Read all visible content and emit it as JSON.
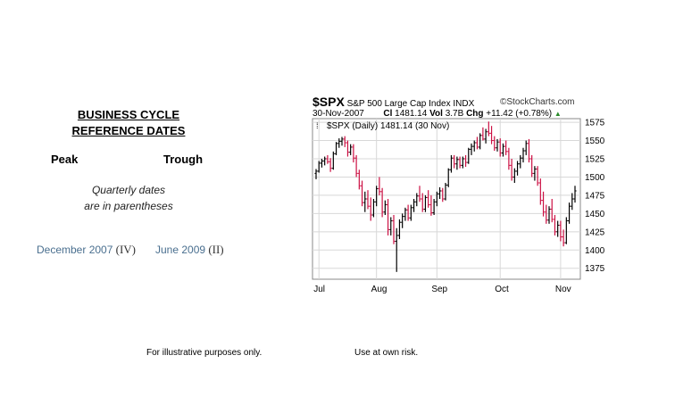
{
  "left_panel": {
    "title_line1": "BUSINESS CYCLE",
    "title_line2": "REFERENCE DATES",
    "peak_label": "Peak",
    "trough_label": "Trough",
    "note_line1": "Quarterly dates",
    "note_line2": "are in parentheses",
    "peak_date": "December 2007",
    "peak_quarter": "(IV)",
    "trough_date": "June 2009",
    "trough_quarter": "(II)"
  },
  "chart_header": {
    "symbol": "$SPX",
    "name": "S&P 500 Large Cap Index",
    "exchange": "INDX",
    "source": "©StockCharts.com",
    "date": "30-Nov-2007",
    "close_label": "Cl",
    "close": "1481.14",
    "vol_label": "Vol",
    "vol": "3.7B",
    "chg_label": "Chg",
    "chg": "+11.42 (+0.78%)",
    "legend": "$SPX (Daily) 1481.14 (30 Nov)"
  },
  "footer": {
    "left": "For illustrative purposes only.",
    "right": "Use at own risk."
  },
  "colors": {
    "up_bar": "#000000",
    "down_bar": "#cc1144",
    "grid": "#d8d8d8",
    "frame": "#888888",
    "link": "#4a6f8f"
  },
  "chart_data": {
    "type": "ohlc",
    "title": "$SPX (Daily) 1481.14 (30 Nov)",
    "ylim": [
      1360,
      1580
    ],
    "yticks": [
      "1575",
      "1550",
      "1525",
      "1500",
      "1475",
      "1450",
      "1425",
      "1400",
      "1375"
    ],
    "ytick_values": [
      1575,
      1550,
      1525,
      1500,
      1475,
      1450,
      1425,
      1400,
      1375
    ],
    "xtick_labels": [
      "Jul",
      "Aug",
      "Sep",
      "Oct",
      "Nov"
    ],
    "xtick_index": [
      1,
      21,
      42,
      64,
      85
    ],
    "grid": true,
    "bars": [
      {
        "o": 1505,
        "h": 1511,
        "l": 1497,
        "c": 1508
      },
      {
        "o": 1508,
        "h": 1522,
        "l": 1506,
        "c": 1519
      },
      {
        "o": 1519,
        "h": 1525,
        "l": 1513,
        "c": 1522
      },
      {
        "o": 1522,
        "h": 1528,
        "l": 1516,
        "c": 1525
      },
      {
        "o": 1525,
        "h": 1530,
        "l": 1518,
        "c": 1521
      },
      {
        "o": 1521,
        "h": 1526,
        "l": 1507,
        "c": 1512
      },
      {
        "o": 1512,
        "h": 1535,
        "l": 1510,
        "c": 1532
      },
      {
        "o": 1532,
        "h": 1548,
        "l": 1530,
        "c": 1546
      },
      {
        "o": 1546,
        "h": 1553,
        "l": 1540,
        "c": 1549
      },
      {
        "o": 1549,
        "h": 1555,
        "l": 1543,
        "c": 1552
      },
      {
        "o": 1552,
        "h": 1556,
        "l": 1541,
        "c": 1547
      },
      {
        "o": 1547,
        "h": 1550,
        "l": 1528,
        "c": 1534
      },
      {
        "o": 1534,
        "h": 1545,
        "l": 1530,
        "c": 1541
      },
      {
        "o": 1541,
        "h": 1545,
        "l": 1520,
        "c": 1526
      },
      {
        "o": 1526,
        "h": 1530,
        "l": 1500,
        "c": 1505
      },
      {
        "o": 1505,
        "h": 1510,
        "l": 1483,
        "c": 1488
      },
      {
        "o": 1488,
        "h": 1495,
        "l": 1460,
        "c": 1465
      },
      {
        "o": 1465,
        "h": 1480,
        "l": 1452,
        "c": 1470
      },
      {
        "o": 1470,
        "h": 1482,
        "l": 1456,
        "c": 1460
      },
      {
        "o": 1460,
        "h": 1472,
        "l": 1440,
        "c": 1448
      },
      {
        "o": 1448,
        "h": 1470,
        "l": 1445,
        "c": 1466
      },
      {
        "o": 1466,
        "h": 1488,
        "l": 1460,
        "c": 1484
      },
      {
        "o": 1484,
        "h": 1500,
        "l": 1475,
        "c": 1480
      },
      {
        "o": 1480,
        "h": 1485,
        "l": 1445,
        "c": 1452
      },
      {
        "o": 1452,
        "h": 1468,
        "l": 1448,
        "c": 1462
      },
      {
        "o": 1462,
        "h": 1470,
        "l": 1420,
        "c": 1428
      },
      {
        "o": 1428,
        "h": 1445,
        "l": 1420,
        "c": 1440
      },
      {
        "o": 1440,
        "h": 1448,
        "l": 1408,
        "c": 1412
      },
      {
        "o": 1412,
        "h": 1430,
        "l": 1370,
        "c": 1420
      },
      {
        "o": 1420,
        "h": 1442,
        "l": 1415,
        "c": 1438
      },
      {
        "o": 1438,
        "h": 1450,
        "l": 1430,
        "c": 1446
      },
      {
        "o": 1446,
        "h": 1458,
        "l": 1440,
        "c": 1455
      },
      {
        "o": 1455,
        "h": 1462,
        "l": 1440,
        "c": 1444
      },
      {
        "o": 1444,
        "h": 1462,
        "l": 1440,
        "c": 1458
      },
      {
        "o": 1458,
        "h": 1470,
        "l": 1452,
        "c": 1466
      },
      {
        "o": 1466,
        "h": 1478,
        "l": 1460,
        "c": 1474
      },
      {
        "o": 1474,
        "h": 1488,
        "l": 1466,
        "c": 1470
      },
      {
        "o": 1470,
        "h": 1478,
        "l": 1452,
        "c": 1456
      },
      {
        "o": 1456,
        "h": 1475,
        "l": 1452,
        "c": 1472
      },
      {
        "o": 1472,
        "h": 1482,
        "l": 1458,
        "c": 1462
      },
      {
        "o": 1462,
        "h": 1475,
        "l": 1447,
        "c": 1451
      },
      {
        "o": 1451,
        "h": 1470,
        "l": 1448,
        "c": 1466
      },
      {
        "o": 1466,
        "h": 1480,
        "l": 1460,
        "c": 1477
      },
      {
        "o": 1477,
        "h": 1486,
        "l": 1470,
        "c": 1481
      },
      {
        "o": 1481,
        "h": 1485,
        "l": 1466,
        "c": 1470
      },
      {
        "o": 1470,
        "h": 1492,
        "l": 1468,
        "c": 1489
      },
      {
        "o": 1489,
        "h": 1512,
        "l": 1486,
        "c": 1510
      },
      {
        "o": 1510,
        "h": 1530,
        "l": 1506,
        "c": 1526
      },
      {
        "o": 1526,
        "h": 1530,
        "l": 1512,
        "c": 1518
      },
      {
        "o": 1518,
        "h": 1528,
        "l": 1510,
        "c": 1524
      },
      {
        "o": 1524,
        "h": 1528,
        "l": 1512,
        "c": 1516
      },
      {
        "o": 1516,
        "h": 1528,
        "l": 1512,
        "c": 1525
      },
      {
        "o": 1525,
        "h": 1530,
        "l": 1514,
        "c": 1520
      },
      {
        "o": 1520,
        "h": 1540,
        "l": 1518,
        "c": 1538
      },
      {
        "o": 1538,
        "h": 1546,
        "l": 1530,
        "c": 1542
      },
      {
        "o": 1542,
        "h": 1550,
        "l": 1535,
        "c": 1547
      },
      {
        "o": 1547,
        "h": 1555,
        "l": 1538,
        "c": 1541
      },
      {
        "o": 1541,
        "h": 1560,
        "l": 1538,
        "c": 1557
      },
      {
        "o": 1557,
        "h": 1568,
        "l": 1550,
        "c": 1552
      },
      {
        "o": 1552,
        "h": 1566,
        "l": 1546,
        "c": 1562
      },
      {
        "o": 1562,
        "h": 1576,
        "l": 1556,
        "c": 1560
      },
      {
        "o": 1560,
        "h": 1570,
        "l": 1545,
        "c": 1550
      },
      {
        "o": 1550,
        "h": 1556,
        "l": 1536,
        "c": 1540
      },
      {
        "o": 1540,
        "h": 1552,
        "l": 1535,
        "c": 1548
      },
      {
        "o": 1548,
        "h": 1553,
        "l": 1528,
        "c": 1533
      },
      {
        "o": 1533,
        "h": 1546,
        "l": 1528,
        "c": 1542
      },
      {
        "o": 1542,
        "h": 1550,
        "l": 1530,
        "c": 1535
      },
      {
        "o": 1535,
        "h": 1540,
        "l": 1510,
        "c": 1516
      },
      {
        "o": 1516,
        "h": 1525,
        "l": 1495,
        "c": 1500
      },
      {
        "o": 1500,
        "h": 1512,
        "l": 1492,
        "c": 1508
      },
      {
        "o": 1508,
        "h": 1522,
        "l": 1502,
        "c": 1518
      },
      {
        "o": 1518,
        "h": 1530,
        "l": 1512,
        "c": 1526
      },
      {
        "o": 1526,
        "h": 1540,
        "l": 1520,
        "c": 1536
      },
      {
        "o": 1536,
        "h": 1550,
        "l": 1530,
        "c": 1546
      },
      {
        "o": 1546,
        "h": 1552,
        "l": 1520,
        "c": 1525
      },
      {
        "o": 1525,
        "h": 1530,
        "l": 1500,
        "c": 1505
      },
      {
        "o": 1505,
        "h": 1515,
        "l": 1495,
        "c": 1511
      },
      {
        "o": 1511,
        "h": 1515,
        "l": 1488,
        "c": 1492
      },
      {
        "o": 1492,
        "h": 1498,
        "l": 1462,
        "c": 1468
      },
      {
        "o": 1468,
        "h": 1480,
        "l": 1446,
        "c": 1452
      },
      {
        "o": 1452,
        "h": 1462,
        "l": 1436,
        "c": 1441
      },
      {
        "o": 1441,
        "h": 1460,
        "l": 1436,
        "c": 1456
      },
      {
        "o": 1456,
        "h": 1470,
        "l": 1438,
        "c": 1442
      },
      {
        "o": 1442,
        "h": 1448,
        "l": 1420,
        "c": 1425
      },
      {
        "o": 1425,
        "h": 1440,
        "l": 1418,
        "c": 1434
      },
      {
        "o": 1434,
        "h": 1440,
        "l": 1412,
        "c": 1418
      },
      {
        "o": 1418,
        "h": 1428,
        "l": 1405,
        "c": 1410
      },
      {
        "o": 1410,
        "h": 1445,
        "l": 1408,
        "c": 1440
      },
      {
        "o": 1440,
        "h": 1465,
        "l": 1436,
        "c": 1460
      },
      {
        "o": 1460,
        "h": 1478,
        "l": 1455,
        "c": 1470
      },
      {
        "o": 1470,
        "h": 1488,
        "l": 1465,
        "c": 1481
      }
    ]
  }
}
